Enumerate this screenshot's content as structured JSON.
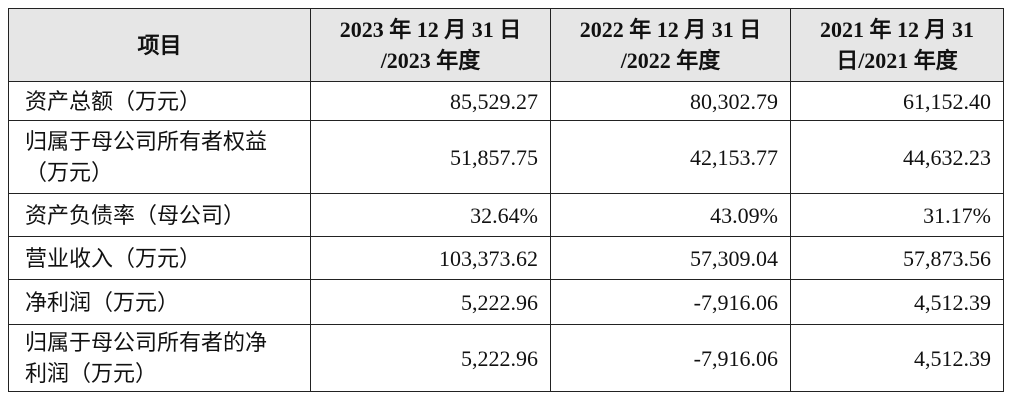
{
  "table": {
    "header": [
      [
        "项目"
      ],
      [
        "2023 年 12 月 31 日",
        "/2023 年度"
      ],
      [
        "2022 年 12 月 31 日",
        "/2022 年度"
      ],
      [
        "2021 年 12 月 31",
        "日/2021 年度"
      ]
    ],
    "rows": [
      {
        "label": [
          "资产总额（万元）"
        ],
        "values": [
          "85,529.27",
          "80,302.79",
          "61,152.40"
        ]
      },
      {
        "label": [
          "归属于母公司所有者权益",
          "（万元）"
        ],
        "values": [
          "51,857.75",
          "42,153.77",
          "44,632.23"
        ]
      },
      {
        "label": [
          "资产负债率（母公司）"
        ],
        "values": [
          "32.64%",
          "43.09%",
          "31.17%"
        ]
      },
      {
        "label": [
          "营业收入（万元）"
        ],
        "values": [
          "103,373.62",
          "57,309.04",
          "57,873.56"
        ]
      },
      {
        "label": [
          "净利润（万元）"
        ],
        "values": [
          "5,222.96",
          "-7,916.06",
          "4,512.39"
        ]
      },
      {
        "label": [
          "归属于母公司所有者的净",
          "利润（万元）"
        ],
        "values": [
          "5,222.96",
          "-7,916.06",
          "4,512.39"
        ]
      }
    ]
  }
}
